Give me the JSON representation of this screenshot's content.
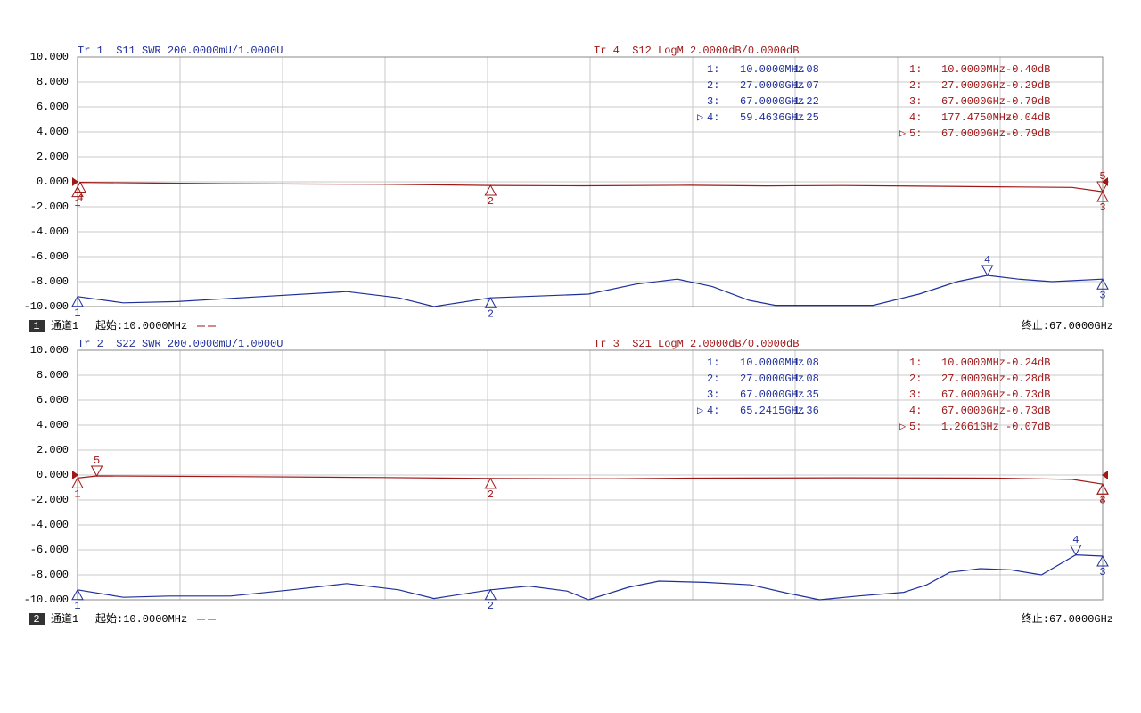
{
  "chart_data": [
    {
      "type": "line",
      "ylim": [
        -10,
        10
      ],
      "y2lim": [
        1.0,
        3.0
      ],
      "xlim": [
        0.01,
        67
      ],
      "grid": true,
      "yticks": [
        {
          "value": 10,
          "label": "10.000"
        },
        {
          "value": 8,
          "label": "8.000"
        },
        {
          "value": 6,
          "label": "6.000"
        },
        {
          "value": 4,
          "label": "4.000"
        },
        {
          "value": 2,
          "label": "2.000"
        },
        {
          "value": 0,
          "label": "0.000"
        },
        {
          "value": -2,
          "label": "-2.000"
        },
        {
          "value": -4,
          "label": "-4.000"
        },
        {
          "value": -6,
          "label": "-6.000"
        },
        {
          "value": -8,
          "label": "-8.000"
        },
        {
          "value": -10,
          "label": "-10.000"
        }
      ],
      "channel_no": "1",
      "channel": "通道1",
      "start": "起始:10.0000MHz",
      "stop": "终止:67.0000GHz",
      "series": [
        {
          "name": "Tr 1  S11 SWR 200.0000mU/1.0000U",
          "color": "#1f2f9a",
          "axis": "y2",
          "x": [
            0.01,
            3,
            6.5,
            12,
            17.6,
            21,
            23.3,
            27,
            33.4,
            36.5,
            39.2,
            41.5,
            43.9,
            45.6,
            49,
            52,
            55,
            57.5,
            59.4636,
            61.5,
            63.7,
            67
          ],
          "values": [
            1.08,
            1.03,
            1.04,
            1.08,
            1.12,
            1.07,
            1.0,
            1.07,
            1.1,
            1.18,
            1.22,
            1.16,
            1.05,
            1.01,
            1.01,
            1.01,
            1.1,
            1.2,
            1.25,
            1.22,
            1.2,
            1.22
          ],
          "markers": [
            {
              "id": "1",
              "label": "1:",
              "x": 0.01,
              "freq": "10.0000MHz",
              "value": 1.08,
              "reading": "1.08",
              "active": false
            },
            {
              "id": "2",
              "label": "2:",
              "x": 27,
              "freq": "27.0000GHz",
              "value": 1.07,
              "reading": "1.07",
              "active": false
            },
            {
              "id": "3",
              "label": "3:",
              "x": 67,
              "freq": "67.0000GHz",
              "value": 1.22,
              "reading": "1.22",
              "active": false
            },
            {
              "id": "4",
              "label": "4:",
              "x": 59.4636,
              "freq": "59.4636GHz",
              "value": 1.25,
              "reading": "1.25",
              "active": true
            }
          ]
        },
        {
          "name": "Tr 4  S12 LogM 2.0000dB/0.0000dB",
          "color": "#a01818",
          "axis": "y",
          "x": [
            0.01,
            0.177475,
            5,
            10,
            15,
            20,
            27,
            33,
            40,
            45,
            50,
            55,
            60,
            65,
            67
          ],
          "values": [
            -0.4,
            -0.04,
            -0.1,
            -0.15,
            -0.18,
            -0.2,
            -0.29,
            -0.32,
            -0.28,
            -0.33,
            -0.3,
            -0.35,
            -0.4,
            -0.45,
            -0.79
          ],
          "markers": [
            {
              "id": "1",
              "label": "1:",
              "x": 0.01,
              "freq": "10.0000MHz",
              "value": -0.4,
              "reading": "-0.40dB",
              "active": false
            },
            {
              "id": "2",
              "label": "2:",
              "x": 27,
              "freq": "27.0000GHz",
              "value": -0.29,
              "reading": "-0.29dB",
              "active": false
            },
            {
              "id": "3",
              "label": "3:",
              "x": 67,
              "freq": "67.0000GHz",
              "value": -0.79,
              "reading": "-0.79dB",
              "active": false
            },
            {
              "id": "4",
              "label": "4:",
              "x": 0.177475,
              "freq": "177.4750MHz",
              "value": -0.04,
              "reading": "-0.04dB",
              "active": false
            },
            {
              "id": "5",
              "label": "5:",
              "x": 67,
              "freq": "67.0000GHz",
              "value": -0.79,
              "reading": "-0.79dB",
              "active": true
            }
          ]
        }
      ]
    },
    {
      "type": "line",
      "ylim": [
        -10,
        10
      ],
      "y2lim": [
        1.0,
        3.0
      ],
      "xlim": [
        0.01,
        67
      ],
      "grid": true,
      "yticks": [
        {
          "value": 10,
          "label": "10.000"
        },
        {
          "value": 8,
          "label": "8.000"
        },
        {
          "value": 6,
          "label": "6.000"
        },
        {
          "value": 4,
          "label": "4.000"
        },
        {
          "value": 2,
          "label": "2.000"
        },
        {
          "value": 0,
          "label": "0.000"
        },
        {
          "value": -2,
          "label": "-2.000"
        },
        {
          "value": -4,
          "label": "-4.000"
        },
        {
          "value": -6,
          "label": "-6.000"
        },
        {
          "value": -8,
          "label": "-8.000"
        },
        {
          "value": -10,
          "label": "-10.000"
        }
      ],
      "channel_no": "2",
      "channel": "通道1",
      "start": "起始:10.0000MHz",
      "stop": "终止:67.0000GHz",
      "series": [
        {
          "name": "Tr 2  S22 SWR 200.0000mU/1.0000U",
          "color": "#1f2f9a",
          "axis": "y2",
          "x": [
            0.01,
            3,
            6,
            10,
            14,
            17.6,
            21,
            23.3,
            27,
            29.5,
            32,
            33.4,
            36,
            38,
            41,
            44,
            46.5,
            48.5,
            51,
            54,
            55.5,
            57,
            59,
            61,
            63,
            65.2415,
            67
          ],
          "values": [
            1.08,
            1.02,
            1.03,
            1.03,
            1.08,
            1.13,
            1.08,
            1.01,
            1.08,
            1.11,
            1.07,
            1.0,
            1.1,
            1.15,
            1.14,
            1.12,
            1.05,
            1.0,
            1.03,
            1.06,
            1.12,
            1.22,
            1.25,
            1.24,
            1.2,
            1.36,
            1.35
          ],
          "markers": [
            {
              "id": "1",
              "label": "1:",
              "x": 0.01,
              "freq": "10.0000MHz",
              "value": 1.08,
              "reading": "1.08",
              "active": false
            },
            {
              "id": "2",
              "label": "2:",
              "x": 27,
              "freq": "27.0000GHz",
              "value": 1.08,
              "reading": "1.08",
              "active": false
            },
            {
              "id": "3",
              "label": "3:",
              "x": 67,
              "freq": "67.0000GHz",
              "value": 1.35,
              "reading": "1.35",
              "active": false
            },
            {
              "id": "4",
              "label": "4:",
              "x": 65.2415,
              "freq": "65.2415GHz",
              "value": 1.36,
              "reading": "1.36",
              "active": true
            }
          ]
        },
        {
          "name": "Tr 3  S21 LogM 2.0000dB/0.0000dB",
          "color": "#a01818",
          "axis": "y",
          "x": [
            0.01,
            1.2661,
            10,
            20,
            27,
            35,
            40,
            50,
            60,
            65,
            67
          ],
          "values": [
            -0.24,
            -0.07,
            -0.12,
            -0.2,
            -0.28,
            -0.3,
            -0.25,
            -0.22,
            -0.25,
            -0.35,
            -0.73
          ],
          "markers": [
            {
              "id": "1",
              "label": "1:",
              "x": 0.01,
              "freq": "10.0000MHz",
              "value": -0.24,
              "reading": "-0.24dB",
              "active": false
            },
            {
              "id": "2",
              "label": "2:",
              "x": 27,
              "freq": "27.0000GHz",
              "value": -0.28,
              "reading": "-0.28dB",
              "active": false
            },
            {
              "id": "3",
              "label": "3:",
              "x": 67,
              "freq": "67.0000GHz",
              "value": -0.73,
              "reading": "-0.73dB",
              "active": false
            },
            {
              "id": "4",
              "label": "4:",
              "x": 67,
              "freq": "67.0000GHz",
              "value": -0.73,
              "reading": "-0.73dB",
              "active": false
            },
            {
              "id": "5",
              "label": "5:",
              "x": 1.2661,
              "freq": "1.2661GHz",
              "value": -0.07,
              "reading": "-0.07dB",
              "active": true
            }
          ]
        }
      ]
    }
  ]
}
